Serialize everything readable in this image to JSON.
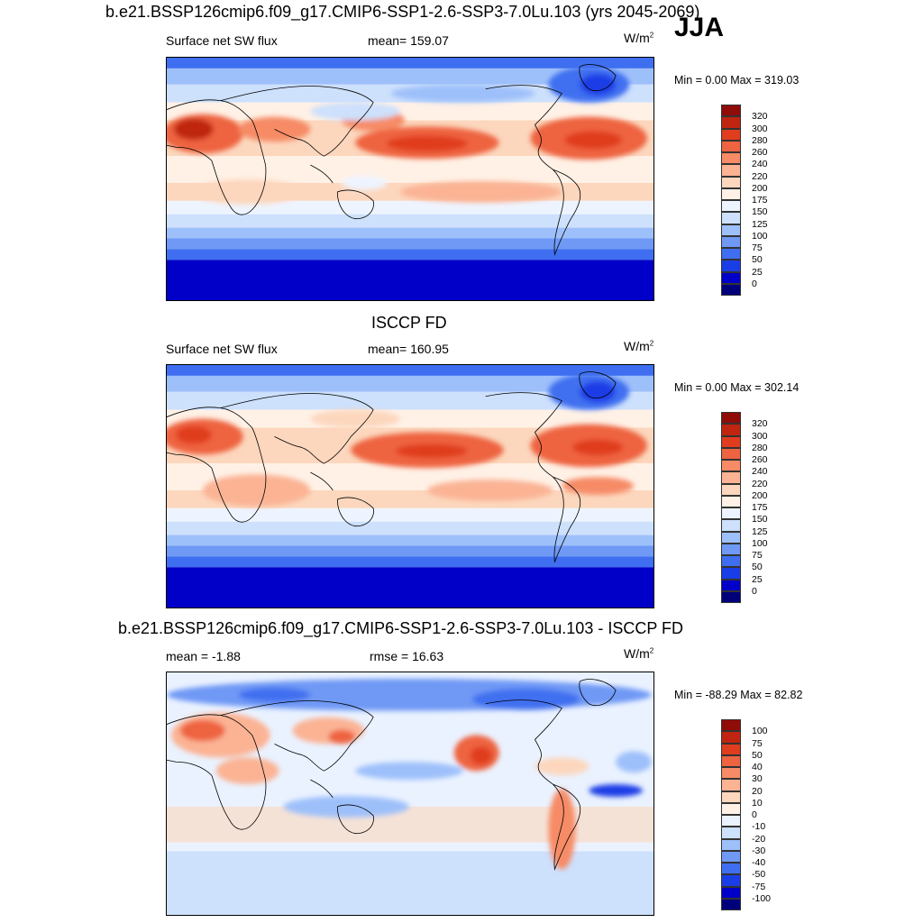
{
  "season": "JJA",
  "palette": {
    "abs": [
      "#00007a",
      "#0000c8",
      "#1a3ee6",
      "#3f6ff0",
      "#6f99f5",
      "#9ec0fa",
      "#cde0fc",
      "#eef4ff",
      "#fff1e6",
      "#fcd7bd",
      "#fbb394",
      "#f68b66",
      "#ee6340",
      "#e03d1e",
      "#bf2510",
      "#900c08"
    ],
    "diff": [
      "#00007a",
      "#0000c8",
      "#1a3ee6",
      "#3f6ff0",
      "#6f99f5",
      "#9ec0fa",
      "#cde0fc",
      "#eaf2ff",
      "#fff1e6",
      "#fcd7bd",
      "#fbb394",
      "#f68b66",
      "#ee6340",
      "#e03d1e",
      "#bf2510",
      "#900c08"
    ]
  },
  "panels": [
    {
      "title": "b.e21.BSSP126cmip6.f09_g17.CMIP6-SSP1-2.6-SSP3-7.0Lu.103 (yrs 2045-2069)",
      "left_label": "Surface net SW flux",
      "center_label": "mean= 159.07",
      "units_base": "W/m",
      "units_exp": "2",
      "min_max": "Min =   0.00 Max = 319.03",
      "map": "model",
      "colorbar_ticks": [
        "320",
        "300",
        "280",
        "260",
        "240",
        "220",
        "200",
        "175",
        "150",
        "125",
        "100",
        "75",
        "50",
        "25",
        "0"
      ]
    },
    {
      "title": "ISCCP FD",
      "left_label": "Surface net SW flux",
      "center_label": "mean= 160.95",
      "units_base": "W/m",
      "units_exp": "2",
      "min_max": "Min =   0.00 Max = 302.14",
      "map": "obs",
      "colorbar_ticks": [
        "320",
        "300",
        "280",
        "260",
        "240",
        "220",
        "200",
        "175",
        "150",
        "125",
        "100",
        "75",
        "50",
        "25",
        "0"
      ]
    },
    {
      "title": "b.e21.BSSP126cmip6.f09_g17.CMIP6-SSP1-2.6-SSP3-7.0Lu.103 - ISCCP FD",
      "left_label": "mean =  -1.88",
      "center_label": "rmse =  16.63",
      "units_base": "W/m",
      "units_exp": "2",
      "min_max": "Min = -88.29 Max =  82.82",
      "map": "diff",
      "colorbar_ticks": [
        "100",
        "75",
        "50",
        "40",
        "30",
        "20",
        "10",
        "0",
        "-10",
        "-20",
        "-30",
        "-40",
        "-50",
        "-75",
        "-100"
      ]
    }
  ]
}
